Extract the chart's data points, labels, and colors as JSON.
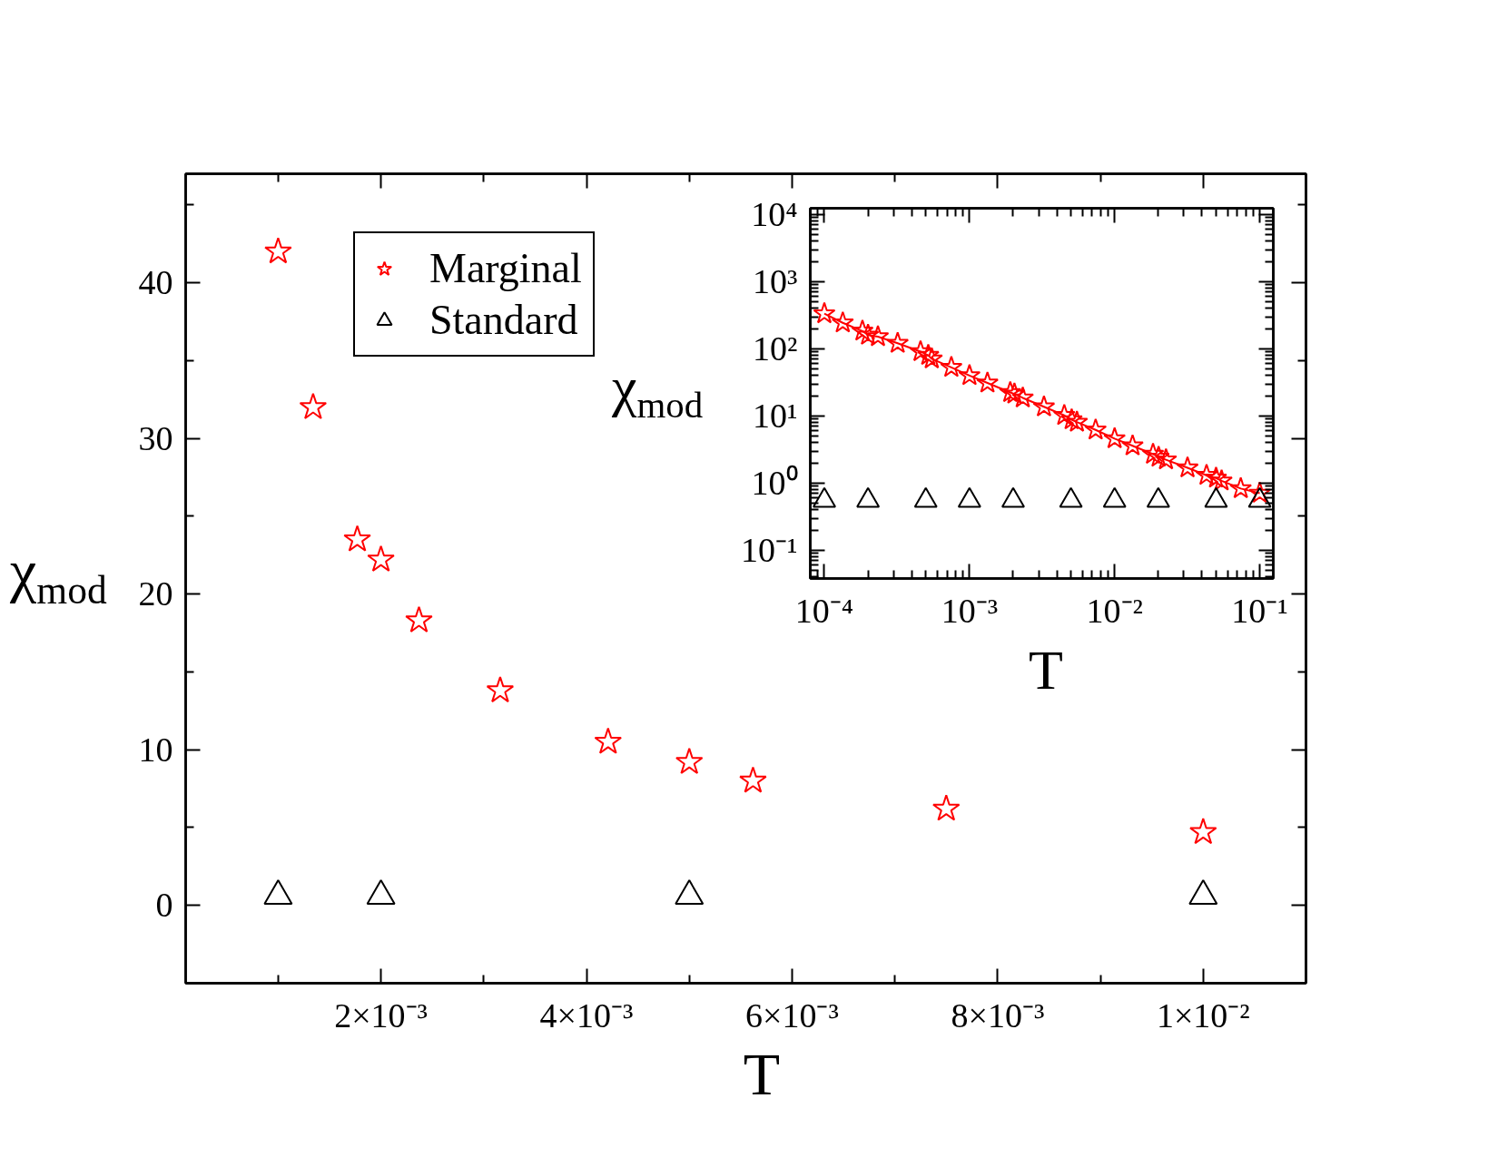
{
  "chart_data": [
    {
      "type": "scatter",
      "xlabel": "T",
      "ylabel": "χ$_{mod}$",
      "legend": "top left",
      "xlim": [
        0.0001,
        0.011
      ],
      "ylim": [
        -5,
        47
      ],
      "xticks": [
        {
          "value": 0.001,
          "label": null
        },
        {
          "value": 0.002,
          "label": "2×10⁻³"
        },
        {
          "value": 0.003,
          "label": null
        },
        {
          "value": 0.004,
          "label": "4×10⁻³"
        },
        {
          "value": 0.005,
          "label": null
        },
        {
          "value": 0.006,
          "label": "6×10⁻³"
        },
        {
          "value": 0.007,
          "label": null
        },
        {
          "value": 0.008,
          "label": "8×10⁻³"
        },
        {
          "value": 0.009,
          "label": null
        },
        {
          "value": 0.01,
          "label": "1×10⁻²"
        }
      ],
      "yticks": [
        0,
        {
          "value": 5,
          "label": null
        },
        10,
        {
          "value": 15,
          "label": null
        },
        20,
        {
          "value": 25,
          "label": null
        },
        30,
        {
          "value": 35,
          "label": null
        },
        40,
        {
          "value": 45,
          "label": null
        }
      ],
      "series": [
        {
          "name": "Marginal",
          "color": "#ff0000",
          "marker": "star",
          "x": [
            0.001,
            0.00134,
            0.00177,
            0.002,
            0.00237,
            0.00316,
            0.00421,
            0.005,
            0.00562,
            0.0075,
            0.01
          ],
          "values": [
            42.0,
            32.0,
            23.5,
            22.2,
            18.3,
            13.8,
            10.5,
            9.2,
            8.0,
            6.2,
            4.7
          ]
        },
        {
          "name": "Standard",
          "color": "#000000",
          "marker": "triangle",
          "x": [
            0.001,
            0.002,
            0.005,
            0.01
          ],
          "values": [
            0.6,
            0.6,
            0.6,
            0.6
          ]
        }
      ]
    },
    {
      "type": "scatter",
      "xlabel": "T",
      "ylabel": "χ$_{mod}$",
      "log": "xy",
      "xlim": [
        8e-05,
        0.124
      ],
      "ylim": [
        0.038,
        12400
      ],
      "xticks": [
        {
          "value": 0.0001,
          "label": "10⁻⁴"
        },
        {
          "value": 0.001,
          "label": "10⁻³"
        },
        {
          "value": 0.01,
          "label": "10⁻²"
        },
        {
          "value": 0.1,
          "label": "10⁻¹"
        }
      ],
      "yticks": [
        {
          "value": 0.1,
          "label": "10⁻¹"
        },
        {
          "value": 1,
          "label": "10⁰"
        },
        {
          "value": 10,
          "label": "10¹"
        },
        {
          "value": 100,
          "label": "10²"
        },
        {
          "value": 1000,
          "label": "10³"
        },
        {
          "value": 10000,
          "label": "10⁴"
        }
      ],
      "series": [
        {
          "type": "line",
          "color": "#ff0000",
          "marker": "star",
          "line_style": "solid",
          "x": [
            0.0001,
            0.000134,
            0.000183,
            0.0002,
            0.000234,
            0.00032,
            0.00046,
            0.00052,
            0.00055,
            0.00075,
            0.001,
            0.00133,
            0.00191,
            0.00204,
            0.00233,
            0.00326,
            0.0045,
            0.00506,
            0.0055,
            0.0074,
            0.01,
            0.0133,
            0.0184,
            0.0201,
            0.0226,
            0.0318,
            0.043,
            0.05,
            0.0546,
            0.074,
            0.1
          ],
          "values": [
            334,
            244,
            184,
            160,
            152,
            121,
            91,
            80,
            71,
            53,
            40,
            31,
            22.4,
            21.3,
            18.6,
            13.7,
            10.2,
            8.8,
            8.1,
            6.2,
            4.6,
            3.6,
            2.7,
            2.44,
            2.23,
            1.69,
            1.31,
            1.19,
            1.08,
            0.83,
            0.71
          ]
        },
        {
          "type": "scatter",
          "color": "#000000",
          "marker": "triangle",
          "x": [
            0.0001,
            0.0002,
            0.0005,
            0.001,
            0.002,
            0.005,
            0.01,
            0.02,
            0.05,
            0.1
          ],
          "values": [
            0.55,
            0.55,
            0.55,
            0.55,
            0.55,
            0.55,
            0.55,
            0.55,
            0.55,
            0.55
          ]
        }
      ]
    }
  ]
}
